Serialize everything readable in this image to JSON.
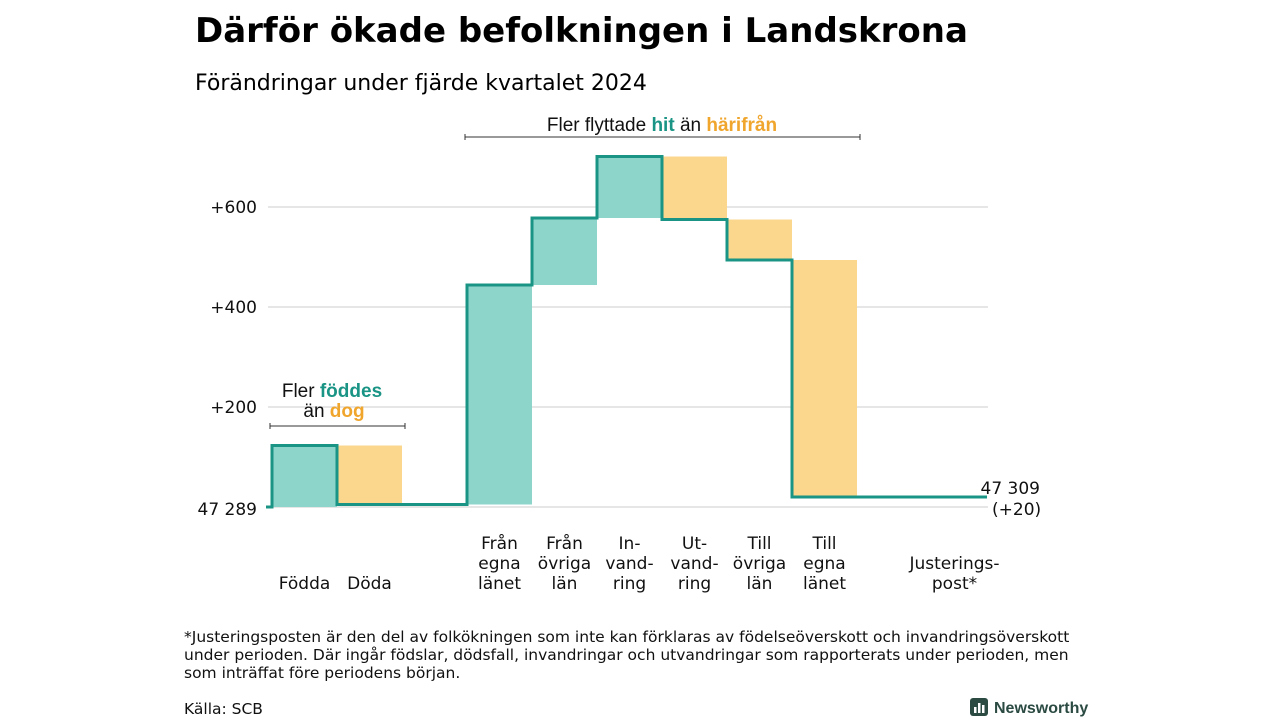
{
  "title": "Därför ökade befolkningen i Landskrona",
  "subtitle": "Förändringar under fjärde kvartalet 2024",
  "colors": {
    "in_fill": "#8dd5cb",
    "out_fill": "#fbd68d",
    "line": "#1a9485",
    "hit": "#1a9485",
    "harifran": "#f0a52c",
    "grid": "#dddddd"
  },
  "annotations": {
    "migration": {
      "pre": "Fler flyttade",
      "hit": "hit",
      "mid": "än",
      "harifran": "härifrån"
    },
    "births": {
      "pre": "Fler",
      "foddes": "föddes",
      "mid": "än",
      "dog": "dog"
    }
  },
  "chart_data": {
    "type": "waterfall",
    "baseline_label": "47 289",
    "end_label_line1": "47 309",
    "end_label_line2": "(+20)",
    "y_ticks": [
      {
        "value": 200,
        "label": "+200"
      },
      {
        "value": 400,
        "label": "+400"
      },
      {
        "value": 600,
        "label": "+600"
      }
    ],
    "ylim": [
      0,
      700
    ],
    "steps": [
      {
        "label": [
          "Födda"
        ],
        "delta": 123,
        "from": 0,
        "to": 123,
        "kind": "in"
      },
      {
        "label": [
          "Döda"
        ],
        "delta": -118,
        "from": 123,
        "to": 5,
        "kind": "out"
      },
      {
        "label": [],
        "delta": 0,
        "from": 5,
        "to": 5,
        "kind": "gap"
      },
      {
        "label": [
          "Från",
          "egna",
          "länet"
        ],
        "delta": 439,
        "from": 5,
        "to": 444,
        "kind": "in"
      },
      {
        "label": [
          "Från",
          "övriga",
          "län"
        ],
        "delta": 134,
        "from": 444,
        "to": 578,
        "kind": "in"
      },
      {
        "label": [
          "In-",
          "vand-",
          "ring"
        ],
        "delta": 123,
        "from": 578,
        "to": 701,
        "kind": "in"
      },
      {
        "label": [
          "Ut-",
          "vand-",
          "ring"
        ],
        "delta": -126,
        "from": 701,
        "to": 575,
        "kind": "out"
      },
      {
        "label": [
          "Till",
          "övriga",
          "län"
        ],
        "delta": -81,
        "from": 575,
        "to": 494,
        "kind": "out"
      },
      {
        "label": [
          "Till",
          "egna",
          "länet"
        ],
        "delta": -474,
        "from": 494,
        "to": 20,
        "kind": "out"
      },
      {
        "label": [],
        "delta": 0,
        "from": 20,
        "to": 20,
        "kind": "gap"
      },
      {
        "label": [
          "Justerings-",
          "post*"
        ],
        "delta": 0,
        "from": 20,
        "to": 20,
        "kind": "adj"
      }
    ]
  },
  "footnote": [
    "*Justeringsposten är den del av folkökningen som inte kan förklaras av födelseöverskott och invandringsöverskott",
    "under perioden. Där ingår födslar, dödsfall, invandringar och utvandringar som rapporterats under perioden, men",
    "som inträffat före periodens början."
  ],
  "source": "Källa: SCB",
  "brand": "Newsworthy"
}
